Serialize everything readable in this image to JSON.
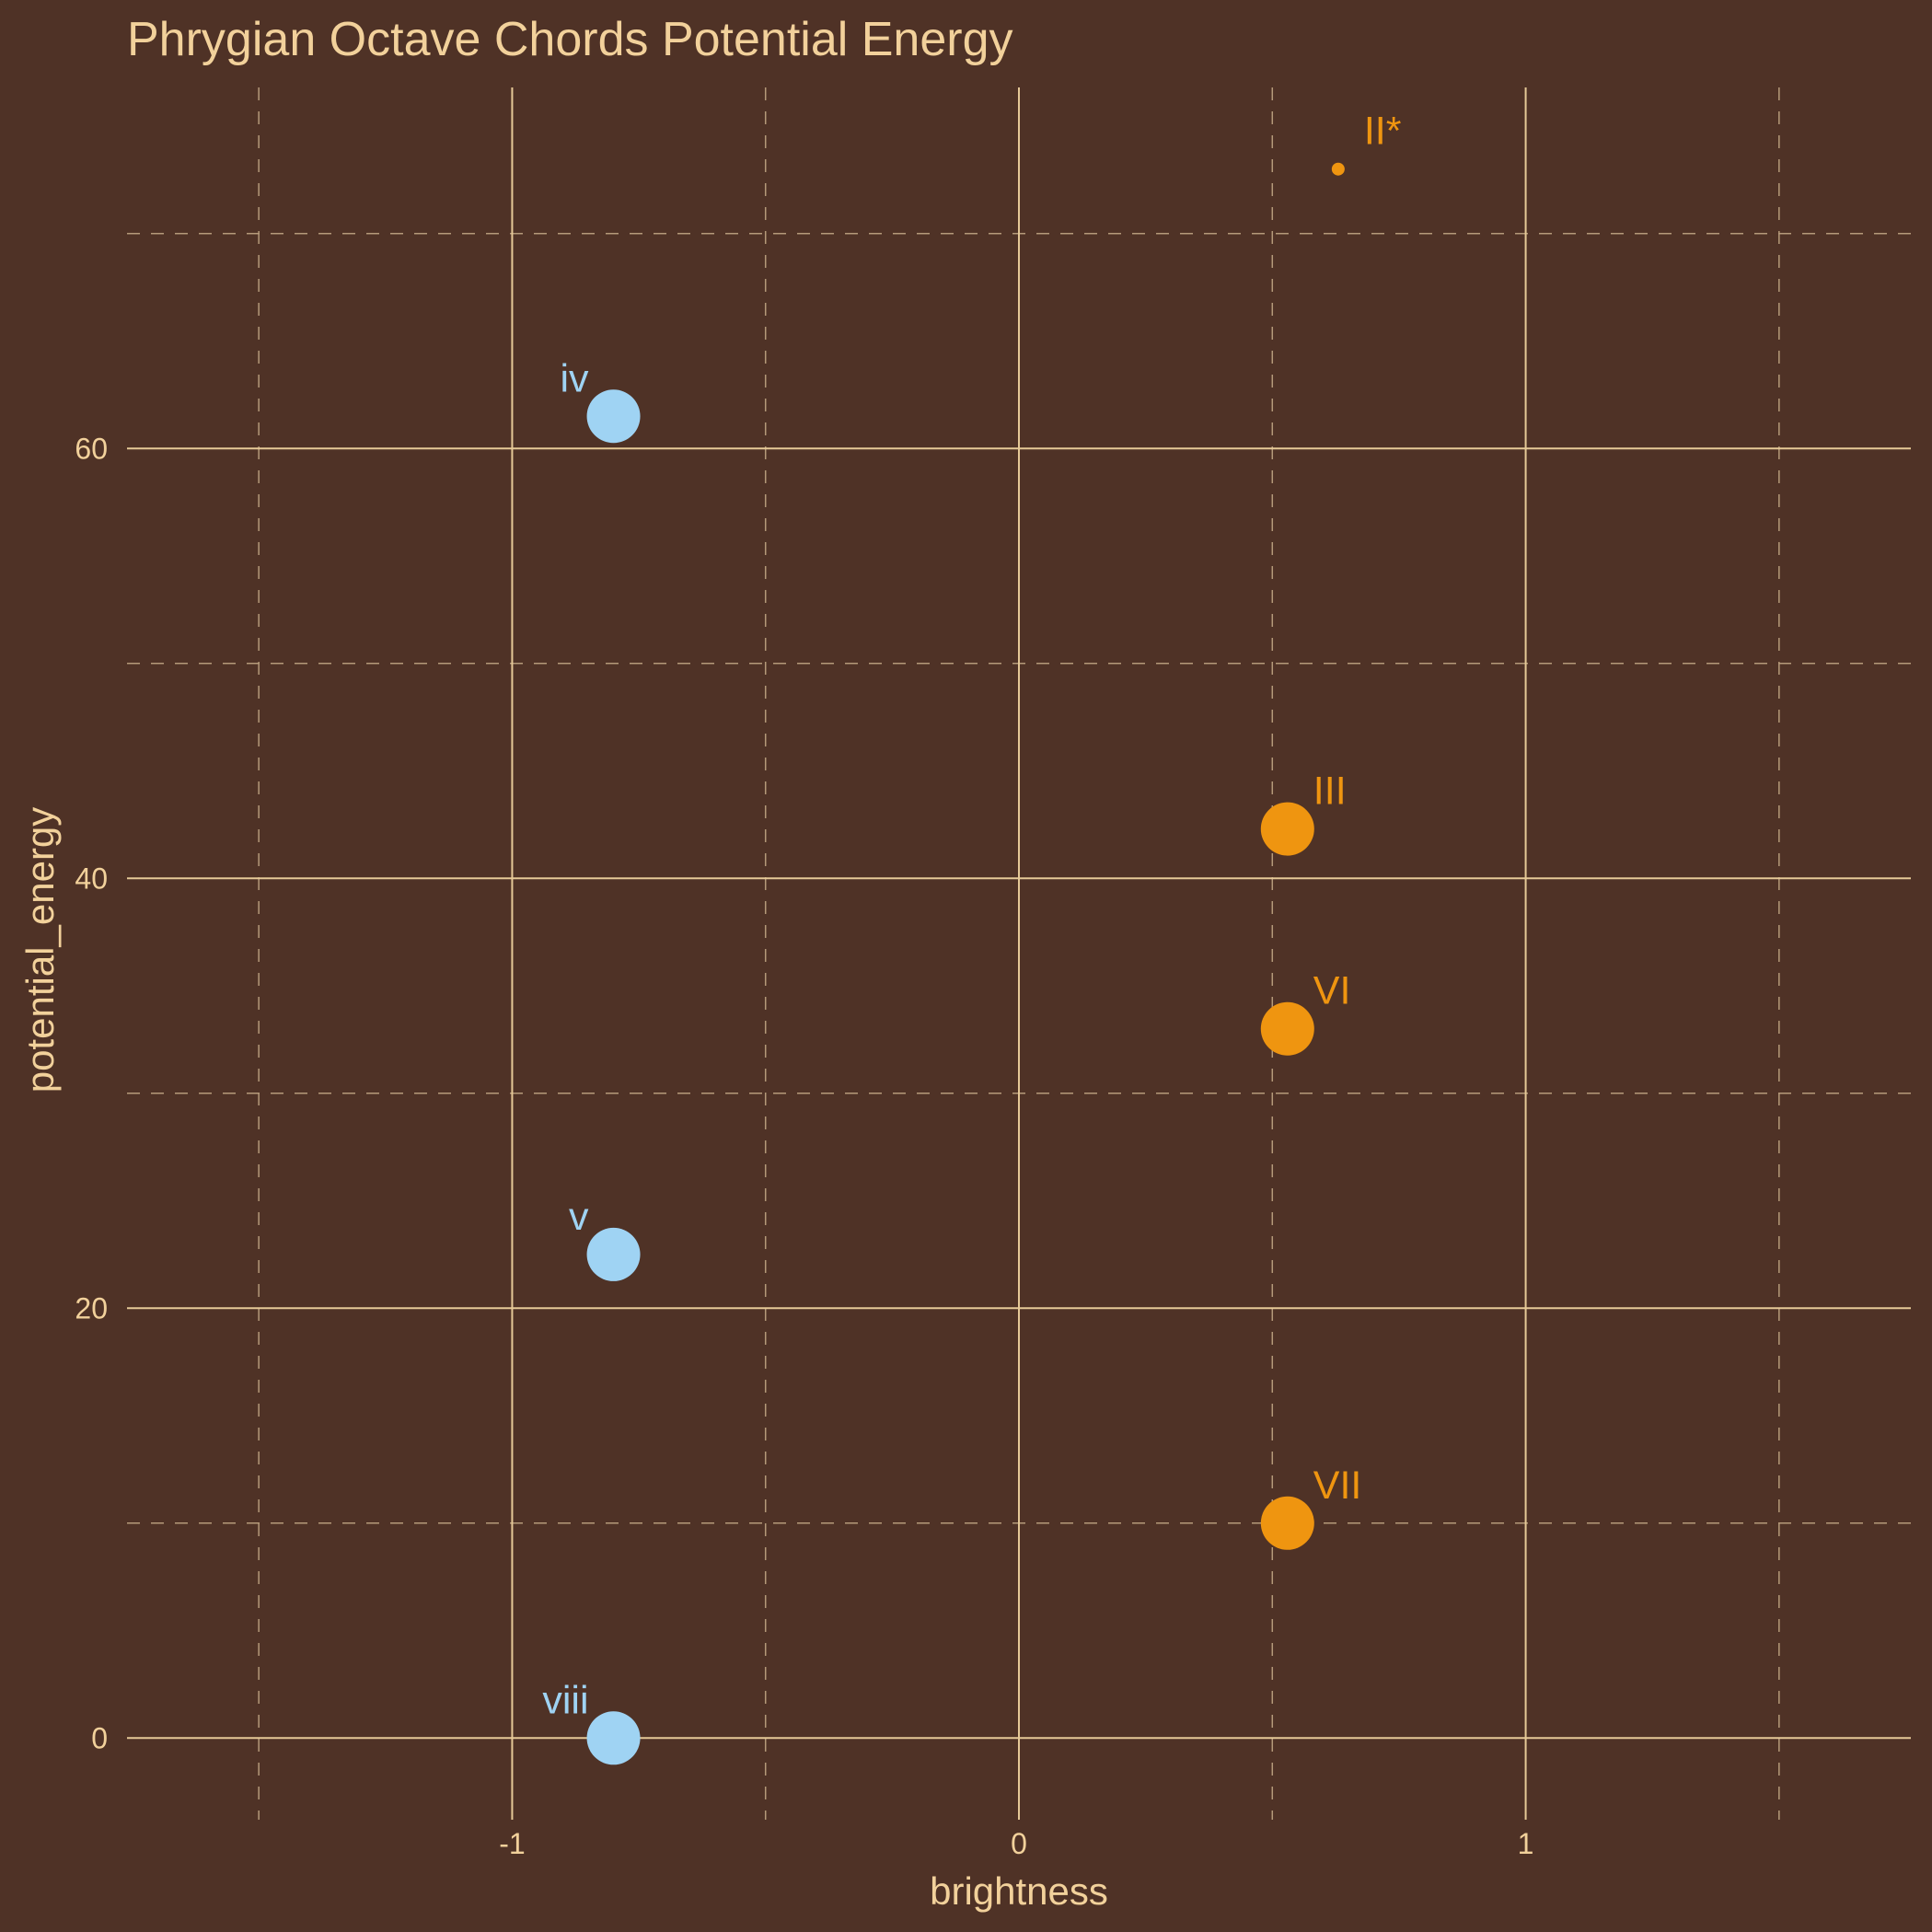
{
  "chart_data": {
    "type": "scatter",
    "title": "Phrygian Octave Chords Potential Energy",
    "xlabel": "brightness",
    "ylabel": "potential_energy",
    "xlim": [
      -1.76,
      1.76
    ],
    "ylim": [
      -3.8,
      76.8
    ],
    "x_ticks": [
      -1,
      0,
      1
    ],
    "x_tick_labels": [
      "-1",
      "0",
      "1"
    ],
    "y_ticks": [
      0,
      20,
      40,
      60
    ],
    "y_tick_labels": [
      "0",
      "20",
      "40",
      "60"
    ],
    "x_minor_ticks": [
      -1.5,
      -0.5,
      0.5,
      1.5
    ],
    "y_minor_ticks": [
      10,
      30,
      50,
      70
    ],
    "grid": true,
    "colors": {
      "background": "#4f3226",
      "text": "#f2d19b",
      "major_grid": "#e6c997",
      "minor_grid": "#b59a7a",
      "minor_chord": "#9fd3f3",
      "major_chord": "#ef9510"
    },
    "points": [
      {
        "label": "iv",
        "x": -0.8,
        "y": 61.5,
        "group": "minor",
        "size": "large"
      },
      {
        "label": "v",
        "x": -0.8,
        "y": 22.5,
        "group": "minor",
        "size": "large"
      },
      {
        "label": "viii",
        "x": -0.8,
        "y": 0,
        "group": "minor",
        "size": "large"
      },
      {
        "label": "III",
        "x": 0.53,
        "y": 42.3,
        "group": "major",
        "size": "large"
      },
      {
        "label": "VI",
        "x": 0.53,
        "y": 33,
        "group": "major",
        "size": "large"
      },
      {
        "label": "VII",
        "x": 0.53,
        "y": 10,
        "group": "major",
        "size": "large"
      },
      {
        "label": "II*",
        "x": 0.63,
        "y": 73,
        "group": "major",
        "size": "small"
      }
    ]
  }
}
